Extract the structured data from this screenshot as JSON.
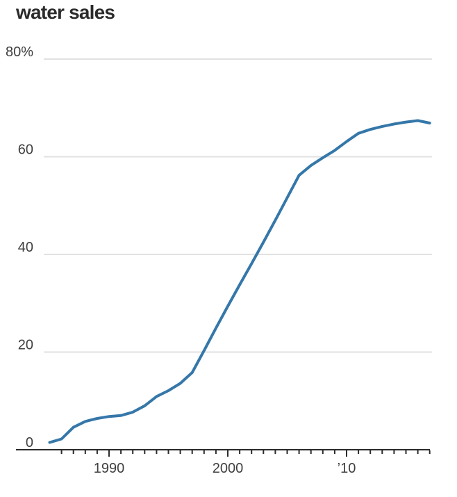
{
  "chart_data": {
    "type": "line",
    "title": "water sales",
    "series": [
      {
        "name": "water sales share (%)",
        "x": [
          1985,
          1986,
          1987,
          1988,
          1989,
          1990,
          1991,
          1992,
          1993,
          1994,
          1995,
          1996,
          1997,
          1998,
          1999,
          2000,
          2001,
          2002,
          2003,
          2004,
          2005,
          2006,
          2007,
          2008,
          2009,
          2010,
          2011,
          2012,
          2013,
          2014,
          2015,
          2016,
          2017
        ],
        "values": [
          1.5,
          2.2,
          4.6,
          5.8,
          6.4,
          6.8,
          7.0,
          7.7,
          9.0,
          10.9,
          12.1,
          13.6,
          15.8,
          20.3,
          24.9,
          29.4,
          33.8,
          38.1,
          42.5,
          47.0,
          51.6,
          56.2,
          58.2,
          59.8,
          61.3,
          63.1,
          64.8,
          65.6,
          66.2,
          66.7,
          67.1,
          67.4,
          66.9
        ]
      }
    ],
    "xlabel": "",
    "ylabel": "",
    "ylim": [
      0,
      80
    ],
    "xlim": [
      1985,
      2017
    ],
    "y_ticks": [
      {
        "value": 0,
        "label": "0"
      },
      {
        "value": 20,
        "label": "20"
      },
      {
        "value": 40,
        "label": "40"
      },
      {
        "value": 60,
        "label": "60"
      },
      {
        "value": 80,
        "label": "80%"
      }
    ],
    "x_ticks_labeled": [
      {
        "value": 1990,
        "label": "1990"
      },
      {
        "value": 2000,
        "label": "2000"
      },
      {
        "value": 2010,
        "label": "’10"
      }
    ],
    "x_minor_tick_start": 1986,
    "x_minor_tick_end": 2017,
    "x_minor_tick_step": 1,
    "grid": "horizontal",
    "legend": "none",
    "colors": {
      "line": "#3577a9",
      "grid": "#e1e1e1",
      "axis": "#2b2b2b",
      "tick_label": "#404040",
      "title": "#2b2b2b",
      "background": "#ffffff"
    }
  }
}
